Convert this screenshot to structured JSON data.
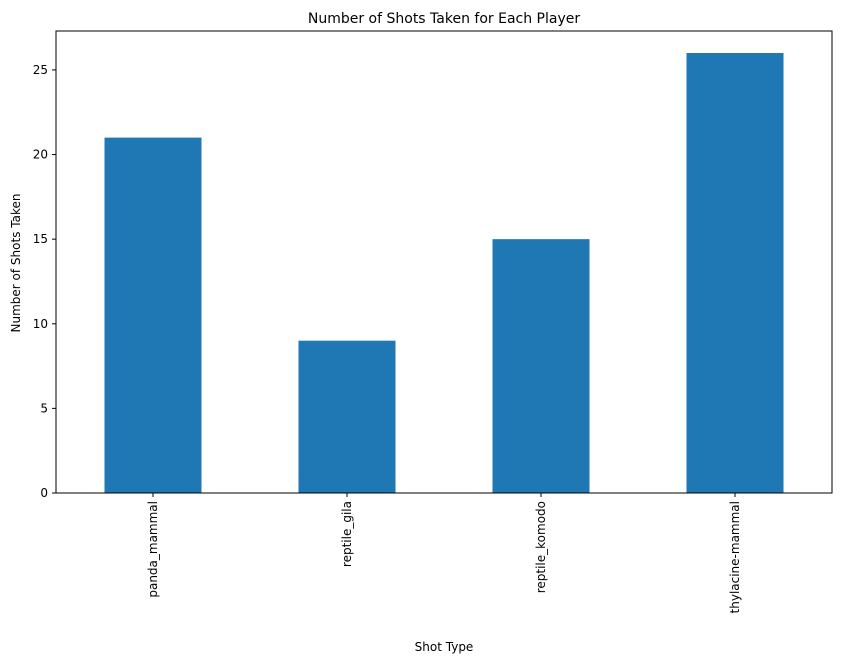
{
  "chart_data": {
    "type": "bar",
    "title": "Number of Shots Taken for Each Player",
    "xlabel": "Shot Type",
    "ylabel": "Number of Shots Taken",
    "categories": [
      "panda_mammal",
      "reptile_gila",
      "reptile_komodo",
      "thylacine-mammal"
    ],
    "values": [
      21,
      9,
      15,
      26
    ],
    "ylim": [
      0,
      27.3
    ],
    "yticks": [
      0,
      5,
      10,
      15,
      20,
      25
    ],
    "grid": false,
    "legend": "none",
    "bar_color": "#1f77b4",
    "x_tick_rotation": "vertical"
  }
}
